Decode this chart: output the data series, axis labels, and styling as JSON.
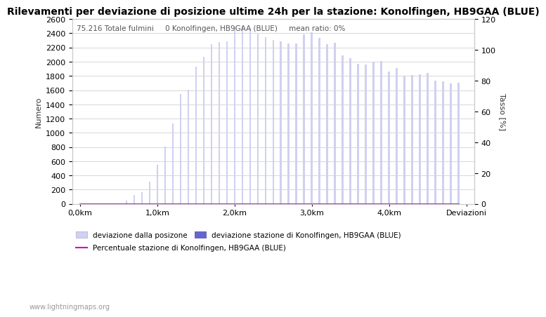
{
  "title": "Rilevamenti per deviazione di posizione ultime 24h per la stazione: Konolfingen, HB9GAA (BLUE)",
  "ylabel_left": "Numero",
  "ylabel_right": "Tasso [%]",
  "annotation": "75.216 Totale fulmini     0 Konolfingen, HB9GAA (BLUE)     mean ratio: 0%",
  "ylim_left": [
    0,
    2600
  ],
  "ylim_right": [
    0,
    120
  ],
  "xtick_labels": [
    "0,0km",
    "1,0km",
    "2,0km",
    "3,0km",
    "4,0km",
    "Deviazioni"
  ],
  "xtick_positions": [
    0,
    10,
    20,
    30,
    40,
    50
  ],
  "ytick_left": [
    0,
    200,
    400,
    600,
    800,
    1000,
    1200,
    1400,
    1600,
    1800,
    2000,
    2200,
    2400,
    2600
  ],
  "ytick_right": [
    0,
    20,
    40,
    60,
    80,
    100,
    120
  ],
  "bar_values": [
    0,
    0,
    0,
    0,
    0,
    0,
    50,
    130,
    170,
    310,
    550,
    810,
    1130,
    1550,
    1610,
    1930,
    2070,
    2250,
    2280,
    2290,
    2490,
    2500,
    2470,
    2400,
    2350,
    2310,
    2290,
    2260,
    2260,
    2380,
    2410,
    2340,
    2250,
    2270,
    2090,
    2050,
    1970,
    1960,
    2000,
    2010,
    1860,
    1910,
    1800,
    1810,
    1820,
    1840,
    1730,
    1720,
    1690,
    1700
  ],
  "station_bar_values": [
    0,
    0,
    0,
    0,
    0,
    0,
    0,
    0,
    0,
    0,
    0,
    0,
    0,
    0,
    0,
    0,
    0,
    0,
    0,
    0,
    0,
    0,
    0,
    0,
    0,
    0,
    0,
    0,
    0,
    0,
    0,
    0,
    0,
    0,
    0,
    0,
    0,
    0,
    0,
    0,
    0,
    0,
    0,
    0,
    0,
    0,
    0,
    0,
    0,
    0
  ],
  "bar_color_light": "#d0d0f0",
  "bar_color_dark": "#6666cc",
  "bar_edge_color": "#b0b0d8",
  "grid_color": "#c8c8c8",
  "background_color": "#ffffff",
  "title_fontsize": 10,
  "label_fontsize": 8,
  "tick_fontsize": 8,
  "watermark": "www.lightningmaps.org",
  "legend_label_0": "deviazione dalla posizone",
  "legend_label_1": "deviazione stazione di Konolfingen, HB9GAA (BLUE)",
  "legend_label_2": "Percentuale stazione di Konolfingen, HB9GAA (BLUE)",
  "legend_color_2": "#cc00cc"
}
